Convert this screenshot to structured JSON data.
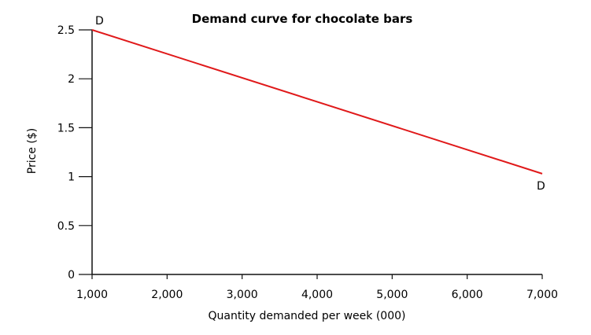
{
  "chart_data": {
    "type": "line",
    "title": "Demand curve for chocolate bars",
    "xlabel": "Quantity demanded per week (000)",
    "ylabel": "Price ($)",
    "xlim": [
      1000,
      7000
    ],
    "ylim": [
      0,
      2.5
    ],
    "x_ticks": [
      1000,
      2000,
      3000,
      4000,
      5000,
      6000,
      7000
    ],
    "x_tick_labels": [
      "1,000",
      "2,000",
      "3,000",
      "4,000",
      "5,000",
      "6,000",
      "7,000"
    ],
    "y_ticks": [
      0,
      0.5,
      1,
      1.5,
      2,
      2.5
    ],
    "y_tick_labels": [
      "0",
      "0.5",
      "1",
      "1.5",
      "2",
      "2.5"
    ],
    "grid": false,
    "series": [
      {
        "label": "D",
        "color": "#e0191a",
        "points": [
          {
            "x": 1000,
            "y": 2.5
          },
          {
            "x": 7000,
            "y": 1.03
          }
        ]
      }
    ],
    "annotations": [
      {
        "text": "D",
        "at": "curve-start"
      },
      {
        "text": "D",
        "at": "curve-end"
      }
    ]
  }
}
